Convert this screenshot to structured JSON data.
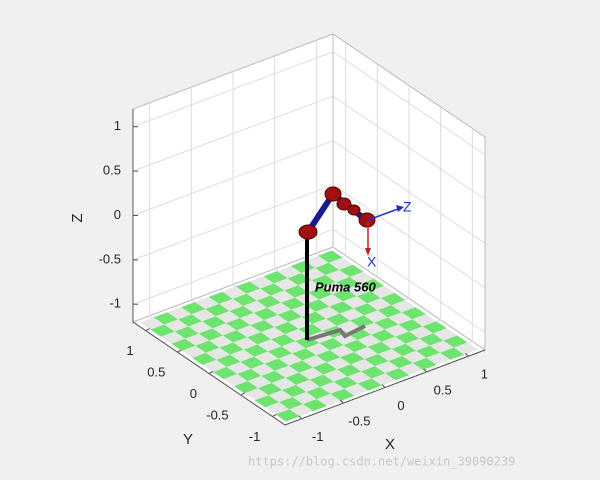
{
  "chart_data": {
    "type": "robot3d",
    "xlabel": "X",
    "ylabel": "Y",
    "zlabel": "Z",
    "xlim": [
      -1.2,
      1.2
    ],
    "ylim": [
      -1.2,
      1.2
    ],
    "zlim": [
      -1.2,
      1.2
    ],
    "xticks": [
      -1,
      -0.5,
      0,
      0.5,
      1
    ],
    "yticks": [
      -1,
      -0.5,
      0,
      0.5,
      1
    ],
    "zticks": [
      -1,
      -0.5,
      0,
      0.5,
      1
    ],
    "grid": true,
    "annotation": "Puma 560",
    "frame_labels": [
      "Z",
      "X"
    ],
    "watermark": "https://blog.csdn.net/weixin_39090239"
  }
}
